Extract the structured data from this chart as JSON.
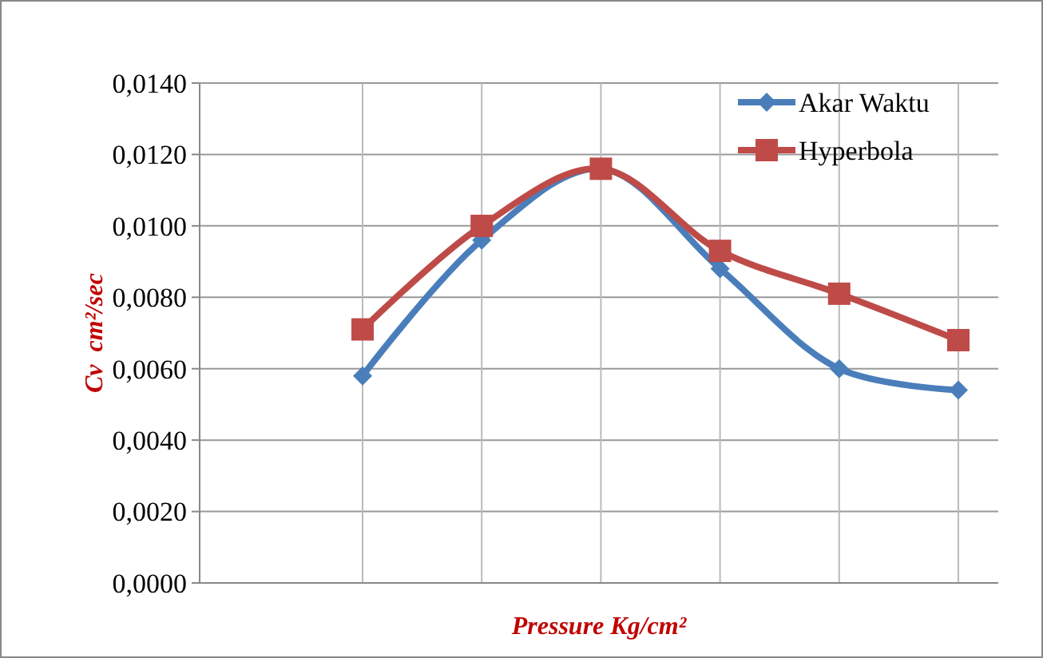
{
  "chart_data": {
    "type": "line",
    "xlabel": "Pressure Kg/cm²",
    "ylabel": "Cv  cm²/sec",
    "categories": [
      null,
      null,
      null,
      null,
      null,
      null
    ],
    "series": [
      {
        "name": "Akar Waktu",
        "color": "#4a7ebb",
        "marker": "diamond",
        "values": [
          0.0058,
          0.0096,
          0.0116,
          0.0088,
          0.006,
          0.0054
        ]
      },
      {
        "name": "Hyperbola",
        "color": "#be4b48",
        "marker": "square",
        "values": [
          0.0071,
          0.01,
          0.0116,
          0.0093,
          0.0081,
          0.0068
        ]
      }
    ],
    "ylim": [
      0,
      0.014
    ],
    "yticks": [
      {
        "value": 0,
        "label": "0,0000"
      },
      {
        "value": 0.002,
        "label": "0,0020"
      },
      {
        "value": 0.004,
        "label": "0,0040"
      },
      {
        "value": 0.006,
        "label": "0,0060"
      },
      {
        "value": 0.008,
        "label": "0,0080"
      },
      {
        "value": 0.01,
        "label": "0,0100"
      },
      {
        "value": 0.012,
        "label": "0,0120"
      },
      {
        "value": 0.014,
        "label": "0,0140"
      }
    ],
    "grid": true,
    "legend": "top right",
    "line_style": "solid"
  }
}
